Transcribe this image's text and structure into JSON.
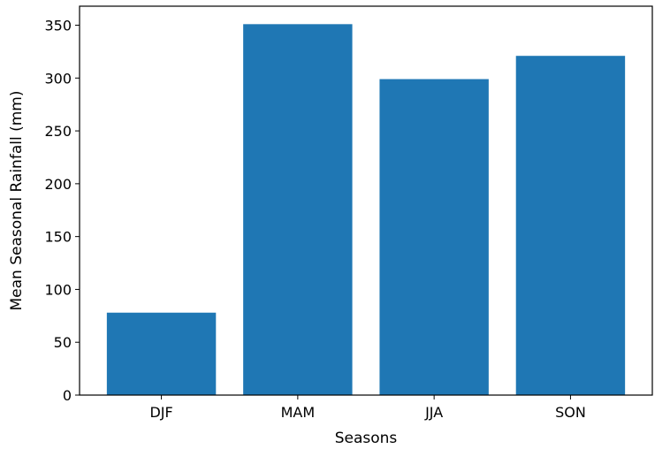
{
  "chart_data": {
    "type": "bar",
    "title": "",
    "xlabel": "Seasons",
    "ylabel": "Mean Seasonal Rainfall (mm)",
    "categories": [
      "DJF",
      "MAM",
      "JJA",
      "SON"
    ],
    "values": [
      78,
      351,
      299,
      321
    ],
    "ylim": [
      0,
      368
    ],
    "yticks": [
      0,
      50,
      100,
      150,
      200,
      250,
      300,
      350
    ],
    "grid": false,
    "legend": "none",
    "bar_color": "#1f77b4"
  }
}
